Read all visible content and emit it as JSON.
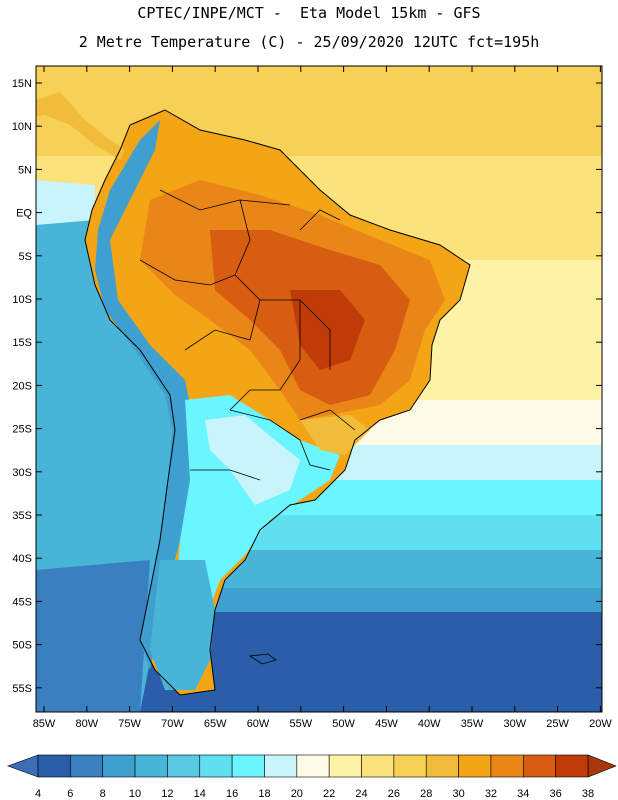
{
  "header": {
    "line1": "CPTEC/INPE/MCT -  Eta Model 15km - GFS",
    "line2": "2 Metre Temperature (C) - 25/09/2020 12UTC fct=195h"
  },
  "lat_labels": [
    "15N",
    "10N",
    "5N",
    "EQ",
    "5S",
    "10S",
    "15S",
    "20S",
    "25S",
    "30S",
    "35S",
    "40S",
    "45S",
    "50S",
    "55S"
  ],
  "lon_labels": [
    "85W",
    "80W",
    "75W",
    "70W",
    "65W",
    "60W",
    "55W",
    "50W",
    "45W",
    "40W",
    "35W",
    "30W",
    "25W",
    "20W"
  ],
  "colorbar": {
    "labels": [
      "4",
      "6",
      "8",
      "10",
      "12",
      "14",
      "16",
      "18",
      "20",
      "22",
      "24",
      "26",
      "28",
      "30",
      "32",
      "34",
      "36",
      "38"
    ],
    "colors": [
      "#2a5ea8",
      "#3a7fbf",
      "#3f9fcf",
      "#48b4d8",
      "#57c9e0",
      "#5fdff0",
      "#6af5ff",
      "#c8f4fc",
      "#fdfbe6",
      "#fdf2a6",
      "#fbe27a",
      "#f7d156",
      "#f1bc3a",
      "#f3a515",
      "#ea8618",
      "#d75d10",
      "#bf3b08"
    ],
    "left_arrow_color": "#3a6fb6",
    "right_arrow_color": "#a8380a"
  },
  "map": {
    "ocean_pacific_south": "#2a5ea8",
    "ocean_pacific_mid": "#48b4d8",
    "ocean_atlantic_north": "#fbe27a",
    "ocean_atlantic_mid": "#fdf2a6",
    "ocean_atlantic_south": "#5fdff0",
    "land_hot": "#d75d10",
    "land_very_hot": "#bf3b08",
    "land_warm": "#f3a515",
    "land_cool": "#6af5ff",
    "land_andes": "#3f9fcf"
  }
}
